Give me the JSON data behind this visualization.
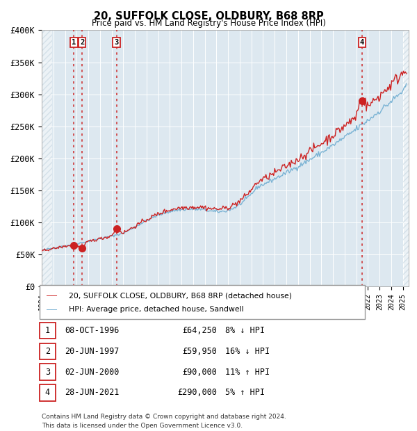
{
  "title": "20, SUFFOLK CLOSE, OLDBURY, B68 8RP",
  "subtitle": "Price paid vs. HM Land Registry's House Price Index (HPI)",
  "ylabel_ticks": [
    "£0",
    "£50K",
    "£100K",
    "£150K",
    "£200K",
    "£250K",
    "£300K",
    "£350K",
    "£400K"
  ],
  "ytick_values": [
    0,
    50000,
    100000,
    150000,
    200000,
    250000,
    300000,
    350000,
    400000
  ],
  "ylim": [
    0,
    400000
  ],
  "xlim_start": 1994.0,
  "xlim_end": 2025.5,
  "hpi_color": "#7ab3d4",
  "price_color": "#cc2222",
  "dashed_color": "#cc2222",
  "bg_color": "#dde8f0",
  "hatch_color": "#b8ccd8",
  "legend_label_price": "20, SUFFOLK CLOSE, OLDBURY, B68 8RP (detached house)",
  "legend_label_hpi": "HPI: Average price, detached house, Sandwell",
  "sales": [
    {
      "num": 1,
      "date": "08-OCT-1996",
      "price": 64250,
      "year": 1996.77,
      "pct": "8%",
      "dir": "↓"
    },
    {
      "num": 2,
      "date": "20-JUN-1997",
      "price": 59950,
      "year": 1997.47,
      "pct": "16%",
      "dir": "↓"
    },
    {
      "num": 3,
      "date": "02-JUN-2000",
      "price": 90000,
      "year": 2000.42,
      "pct": "11%",
      "dir": "↑"
    },
    {
      "num": 4,
      "date": "28-JUN-2021",
      "price": 290000,
      "year": 2021.49,
      "pct": "5%",
      "dir": "↑"
    }
  ],
  "footnote1": "Contains HM Land Registry data © Crown copyright and database right 2024.",
  "footnote2": "This data is licensed under the Open Government Licence v3.0.",
  "hatch_left_end": 1994.9,
  "hatch_right_start": 2025.0
}
